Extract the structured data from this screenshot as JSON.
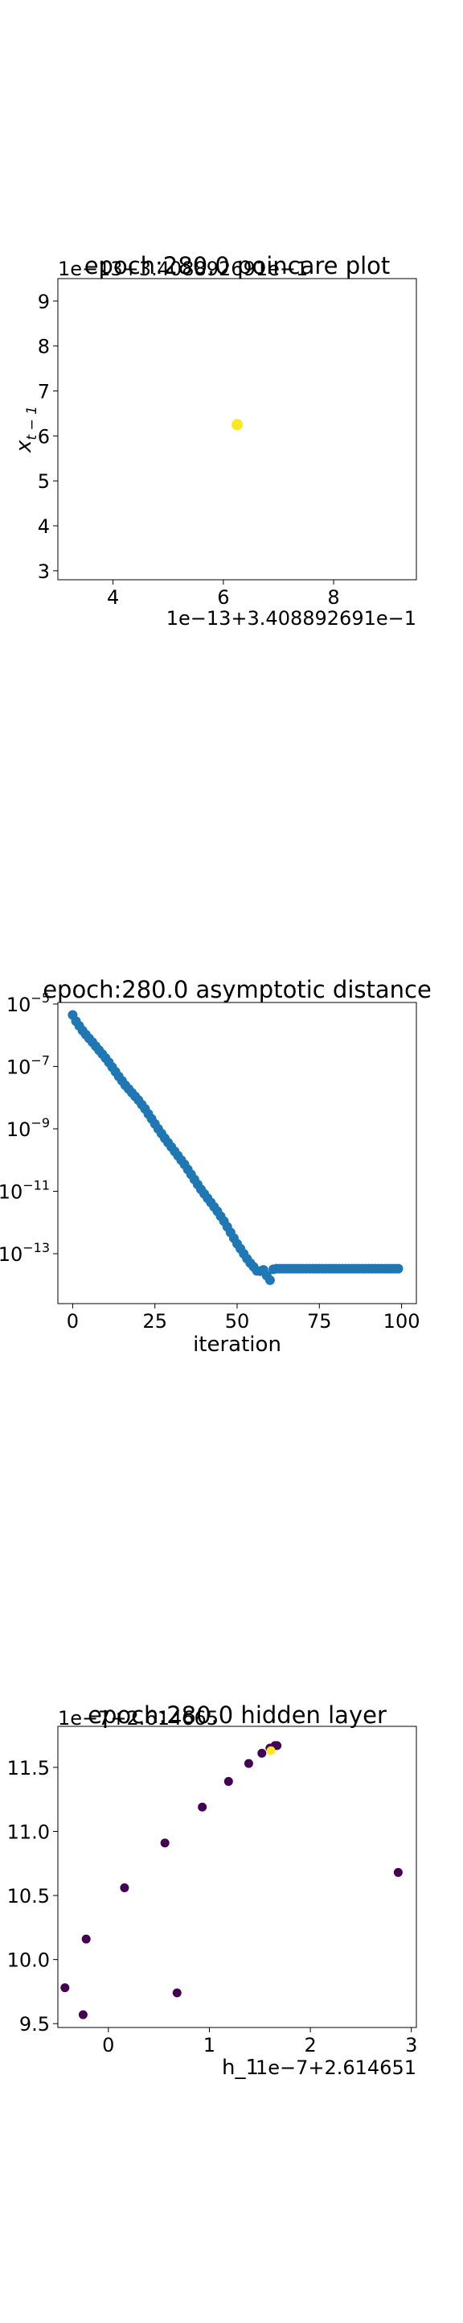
{
  "chart_data": [
    {
      "type": "scatter",
      "title": "epoch:280.0 poincare plot",
      "xlabel": "",
      "ylabel": "x_{t-1}",
      "x_offset_label": "1e−13+3.408892691e−1",
      "y_offset_label": "1e−13+3.408892691e−1",
      "xlim": [
        3.0,
        9.5
      ],
      "ylim": [
        2.8,
        9.5
      ],
      "xticks": [
        4,
        6,
        8
      ],
      "xtick_labels": [
        "4",
        "6",
        "8"
      ],
      "yticks": [
        3,
        4,
        5,
        6,
        7,
        8,
        9
      ],
      "ytick_labels": [
        "3",
        "4",
        "5",
        "6",
        "7",
        "8",
        "9"
      ],
      "points": [
        {
          "x": 6.25,
          "y": 6.25
        }
      ],
      "point_color": "#fde725",
      "grid": false
    },
    {
      "type": "scatter",
      "title": "epoch:280.0 asymptotic distance",
      "xlabel": "iteration",
      "ylabel": "",
      "yscale": "log",
      "xlim": [
        -4.5,
        104.5
      ],
      "ylim_log10": [
        -14.6,
        -4.95
      ],
      "xticks": [
        0,
        25,
        50,
        75,
        100
      ],
      "xtick_labels": [
        "0",
        "25",
        "50",
        "75",
        "100"
      ],
      "yticks_log10": [
        -13,
        -11,
        -9,
        -7,
        -5
      ],
      "ytick_mantissa": [
        "10",
        "10",
        "10",
        "10",
        "10"
      ],
      "ytick_exponent": [
        "−13",
        "−11",
        "−9",
        "−7",
        "−5"
      ],
      "series": [
        {
          "x": [
            0,
            1,
            2,
            3,
            4,
            5,
            6,
            7,
            8,
            9,
            10,
            11,
            12,
            13,
            14,
            15,
            16,
            17,
            18,
            19,
            20,
            21,
            22,
            23,
            24,
            25,
            26,
            27,
            28,
            29,
            30,
            31,
            32,
            33,
            34,
            35,
            36,
            37,
            38,
            39,
            40,
            41,
            42,
            43,
            44,
            45,
            46,
            47,
            48,
            49,
            50,
            51,
            52,
            53,
            54,
            55,
            56,
            57,
            58,
            59,
            60,
            61,
            62,
            63,
            64,
            65,
            66,
            67,
            68,
            69,
            70,
            71,
            72,
            73,
            74,
            75,
            76,
            77,
            78,
            79,
            80,
            81,
            82,
            83,
            84,
            85,
            86,
            87,
            88,
            89,
            90,
            91,
            92,
            93,
            94,
            95,
            96,
            97,
            98,
            99
          ],
          "log10_y": [
            -5.35,
            -5.55,
            -5.7,
            -5.85,
            -5.98,
            -6.1,
            -6.22,
            -6.35,
            -6.48,
            -6.6,
            -6.73,
            -6.87,
            -7.02,
            -7.17,
            -7.32,
            -7.46,
            -7.6,
            -7.72,
            -7.84,
            -7.96,
            -8.08,
            -8.22,
            -8.36,
            -8.52,
            -8.68,
            -8.84,
            -9.0,
            -9.15,
            -9.3,
            -9.44,
            -9.58,
            -9.72,
            -9.86,
            -10.0,
            -10.14,
            -10.3,
            -10.46,
            -10.62,
            -10.78,
            -10.94,
            -11.08,
            -11.22,
            -11.36,
            -11.5,
            -11.64,
            -11.8,
            -11.96,
            -12.14,
            -12.32,
            -12.5,
            -12.68,
            -12.84,
            -13.0,
            -13.16,
            -13.3,
            -13.42,
            -13.55,
            -13.56,
            -13.52,
            -13.7,
            -13.85,
            -13.5,
            -13.48,
            -13.48,
            -13.48,
            -13.48,
            -13.48,
            -13.48,
            -13.48,
            -13.48,
            -13.48,
            -13.48,
            -13.48,
            -13.48,
            -13.48,
            -13.48,
            -13.48,
            -13.48,
            -13.48,
            -13.48,
            -13.48,
            -13.48,
            -13.48,
            -13.48,
            -13.48,
            -13.48,
            -13.48,
            -13.48,
            -13.48,
            -13.48,
            -13.48,
            -13.48,
            -13.48,
            -13.48,
            -13.48,
            -13.48,
            -13.48,
            -13.48,
            -13.48,
            -13.48
          ]
        }
      ],
      "point_color": "#1f77b4",
      "grid": false
    },
    {
      "type": "scatter",
      "title": "epoch:280.0 hidden layer",
      "xlabel": "h_1",
      "ylabel": "",
      "x_offset_label": "1e−7+2.614651",
      "y_offset_label": "1e−7+2.614665",
      "xlim": [
        -0.5,
        3.05
      ],
      "ylim": [
        9.47,
        11.82
      ],
      "xticks": [
        0,
        1,
        2,
        3
      ],
      "xtick_labels": [
        "0",
        "1",
        "2",
        "3"
      ],
      "yticks": [
        9.5,
        10.0,
        10.5,
        11.0,
        11.5
      ],
      "ytick_labels": [
        "9.5",
        "10.0",
        "10.5",
        "11.0",
        "11.5"
      ],
      "points": [
        {
          "x": -0.43,
          "y": 9.78,
          "c": "#440154"
        },
        {
          "x": -0.25,
          "y": 9.57,
          "c": "#440154"
        },
        {
          "x": -0.22,
          "y": 10.16,
          "c": "#440154"
        },
        {
          "x": 0.16,
          "y": 10.56,
          "c": "#440154"
        },
        {
          "x": 0.56,
          "y": 10.91,
          "c": "#440154"
        },
        {
          "x": 0.68,
          "y": 9.74,
          "c": "#440154"
        },
        {
          "x": 0.93,
          "y": 11.19,
          "c": "#440154"
        },
        {
          "x": 1.19,
          "y": 11.39,
          "c": "#440154"
        },
        {
          "x": 1.39,
          "y": 11.53,
          "c": "#440154"
        },
        {
          "x": 1.52,
          "y": 11.61,
          "c": "#440154"
        },
        {
          "x": 1.6,
          "y": 11.65,
          "c": "#440154"
        },
        {
          "x": 1.65,
          "y": 11.67,
          "c": "#440154"
        },
        {
          "x": 1.67,
          "y": 11.67,
          "c": "#440154"
        },
        {
          "x": 2.87,
          "y": 10.68,
          "c": "#440154"
        },
        {
          "x": 1.61,
          "y": 11.63,
          "c": "#fde725"
        }
      ],
      "grid": false
    }
  ]
}
